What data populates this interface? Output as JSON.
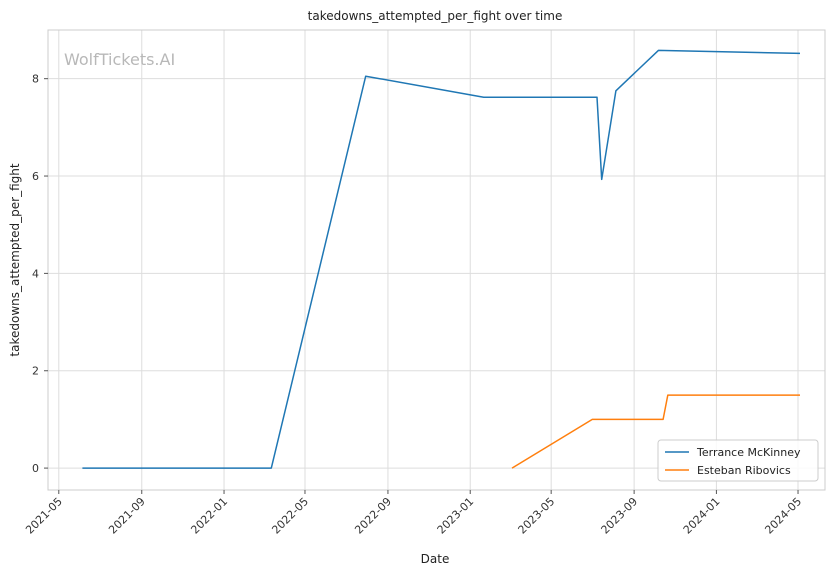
{
  "chart_data": {
    "type": "line",
    "title": "takedowns_attempted_per_fight over time",
    "xlabel": "Date",
    "ylabel": "takedowns_attempted_per_fight",
    "watermark": "WolfTickets.AI",
    "x_ticks": [
      "2021-05",
      "2021-09",
      "2022-01",
      "2022-05",
      "2022-09",
      "2023-01",
      "2023-05",
      "2023-09",
      "2024-01",
      "2024-05"
    ],
    "y_ticks": [
      0,
      2,
      4,
      6,
      8
    ],
    "xlim": [
      "2021-04-15",
      "2024-06-10"
    ],
    "ylim": [
      -0.45,
      9.0
    ],
    "grid": true,
    "legend_position": "bottom-right",
    "series": [
      {
        "name": "Terrance McKinney",
        "color": "#1f77b4",
        "points": [
          {
            "x": "2021-06-05",
            "y": 0
          },
          {
            "x": "2022-03-12",
            "y": 0
          },
          {
            "x": "2022-07-30",
            "y": 8.05
          },
          {
            "x": "2023-01-21",
            "y": 7.62
          },
          {
            "x": "2023-07-08",
            "y": 7.62
          },
          {
            "x": "2023-07-15",
            "y": 5.93
          },
          {
            "x": "2023-08-05",
            "y": 7.75
          },
          {
            "x": "2023-10-07",
            "y": 8.58
          },
          {
            "x": "2024-05-04",
            "y": 8.52
          }
        ]
      },
      {
        "name": "Esteban Ribovics",
        "color": "#ff7f0e",
        "points": [
          {
            "x": "2023-03-04",
            "y": 0
          },
          {
            "x": "2023-07-01",
            "y": 1.0
          },
          {
            "x": "2023-10-14",
            "y": 1.0
          },
          {
            "x": "2023-10-21",
            "y": 1.5
          },
          {
            "x": "2024-05-04",
            "y": 1.5
          }
        ]
      }
    ]
  }
}
